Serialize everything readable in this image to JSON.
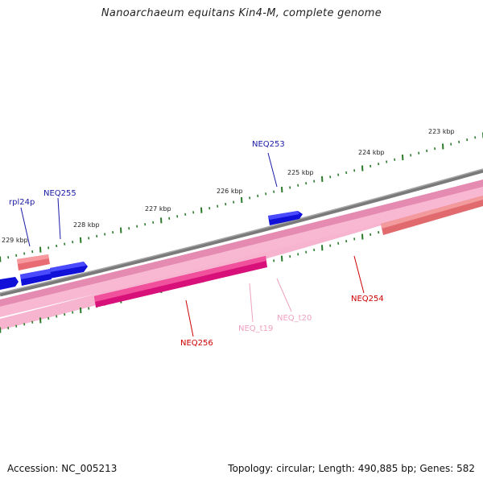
{
  "title": "Nanoarchaeum equitans Kin4-M, complete genome",
  "footer": {
    "accession": "Accession: NC_005213",
    "summary": "Topology: circular; Length: 490,885 bp; Genes: 582"
  },
  "colors": {
    "backbone": "#808080",
    "tick": "#2a7a2a",
    "forward_gene": "#0000ee",
    "reverse_gene": "#e8556a",
    "rna": "#f48fb1",
    "rna_dark": "#e0157a",
    "label_blue": "#1a1aa6",
    "label_red": "#cc0000",
    "label_pink": "#f0a0c0"
  },
  "scale_labels": [
    "223 kbp",
    "224 kbp",
    "225 kbp",
    "226 kbp",
    "227 kbp",
    "228 kbp",
    "229 kbp"
  ],
  "gene_labels": [
    "NEQ253",
    "NEQ255",
    "rpl24p",
    "NEQ254",
    "NEQ256",
    "NEQ_t19",
    "NEQ_t20"
  ]
}
